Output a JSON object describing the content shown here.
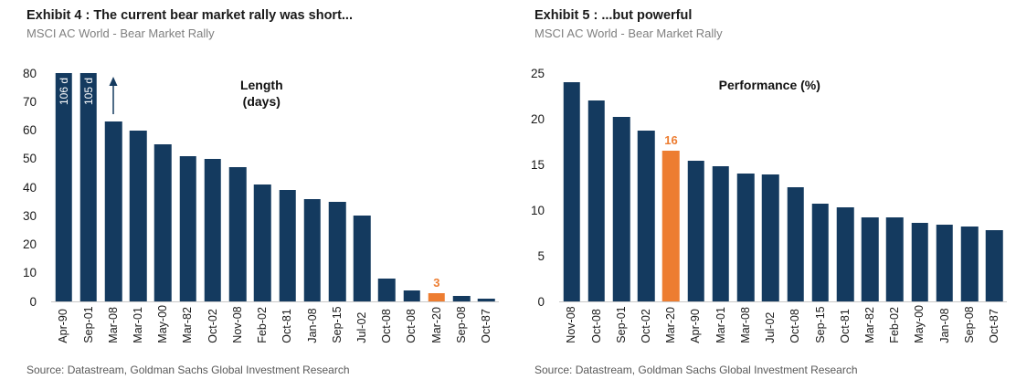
{
  "colors": {
    "navy": "#143A5F",
    "orange": "#ED7D31",
    "axis_line": "#C9C9C9",
    "subtitle_gray": "#7F7F7F",
    "source_gray": "#595959"
  },
  "panels": [
    {
      "title": "Exhibit 4 : The current bear market rally was short...",
      "subtitle": "MSCI AC World - Bear Market Rally",
      "source": "Source: Datastream, Goldman Sachs Global Investment Research"
    },
    {
      "title": "Exhibit 5 : ...but powerful",
      "subtitle": "MSCI AC World - Bear Market Rally",
      "source": "Source: Datastream, Goldman Sachs Global Investment Research"
    }
  ],
  "chart_data": [
    {
      "type": "bar",
      "title": "Length (days)",
      "annotation_lines": [
        "Length",
        "(days)"
      ],
      "annotation_x_pct": 47,
      "categories": [
        "Apr-90",
        "Sep-01",
        "Mar-08",
        "Mar-01",
        "May-00",
        "Mar-82",
        "Oct-02",
        "Nov-08",
        "Feb-02",
        "Oct-81",
        "Jan-08",
        "Sep-15",
        "Jul-02",
        "Oct-08",
        "Oct-08",
        "Mar-20",
        "Sep-08",
        "Oct-87"
      ],
      "values": [
        106,
        105,
        63,
        60,
        55,
        51,
        50,
        47,
        41,
        39,
        36,
        35,
        30,
        8,
        4,
        3,
        2,
        1
      ],
      "ylim": [
        0,
        80
      ],
      "yticks": [
        0,
        10,
        20,
        30,
        40,
        50,
        60,
        70,
        80
      ],
      "clip_to_ylim": true,
      "inside_bar_labels": {
        "0": "106 d",
        "1": "105 d"
      },
      "arrow_over_index": 2,
      "highlight_index": 15,
      "highlight_label": "3",
      "grid": false,
      "legend": false
    },
    {
      "type": "bar",
      "title": "Performance (%)",
      "annotation_lines": [
        "Performance (%)"
      ],
      "annotation_x_pct": 47,
      "categories": [
        "Nov-08",
        "Oct-08",
        "Sep-01",
        "Oct-02",
        "Mar-20",
        "Apr-90",
        "Mar-01",
        "Mar-08",
        "Jul-02",
        "Oct-08",
        "Sep-15",
        "Oct-81",
        "Mar-82",
        "Feb-02",
        "May-00",
        "Jan-08",
        "Sep-08",
        "Oct-87"
      ],
      "values": [
        24,
        22,
        20.2,
        18.7,
        16.5,
        15.4,
        14.8,
        14,
        13.9,
        12.5,
        10.7,
        10.3,
        9.2,
        9.2,
        8.6,
        8.4,
        8.2,
        7.8
      ],
      "ylim": [
        0,
        25
      ],
      "yticks": [
        0,
        5,
        10,
        15,
        20,
        25
      ],
      "clip_to_ylim": false,
      "inside_bar_labels": {},
      "arrow_over_index": null,
      "highlight_index": 4,
      "highlight_label": "16",
      "grid": false,
      "legend": false
    }
  ]
}
